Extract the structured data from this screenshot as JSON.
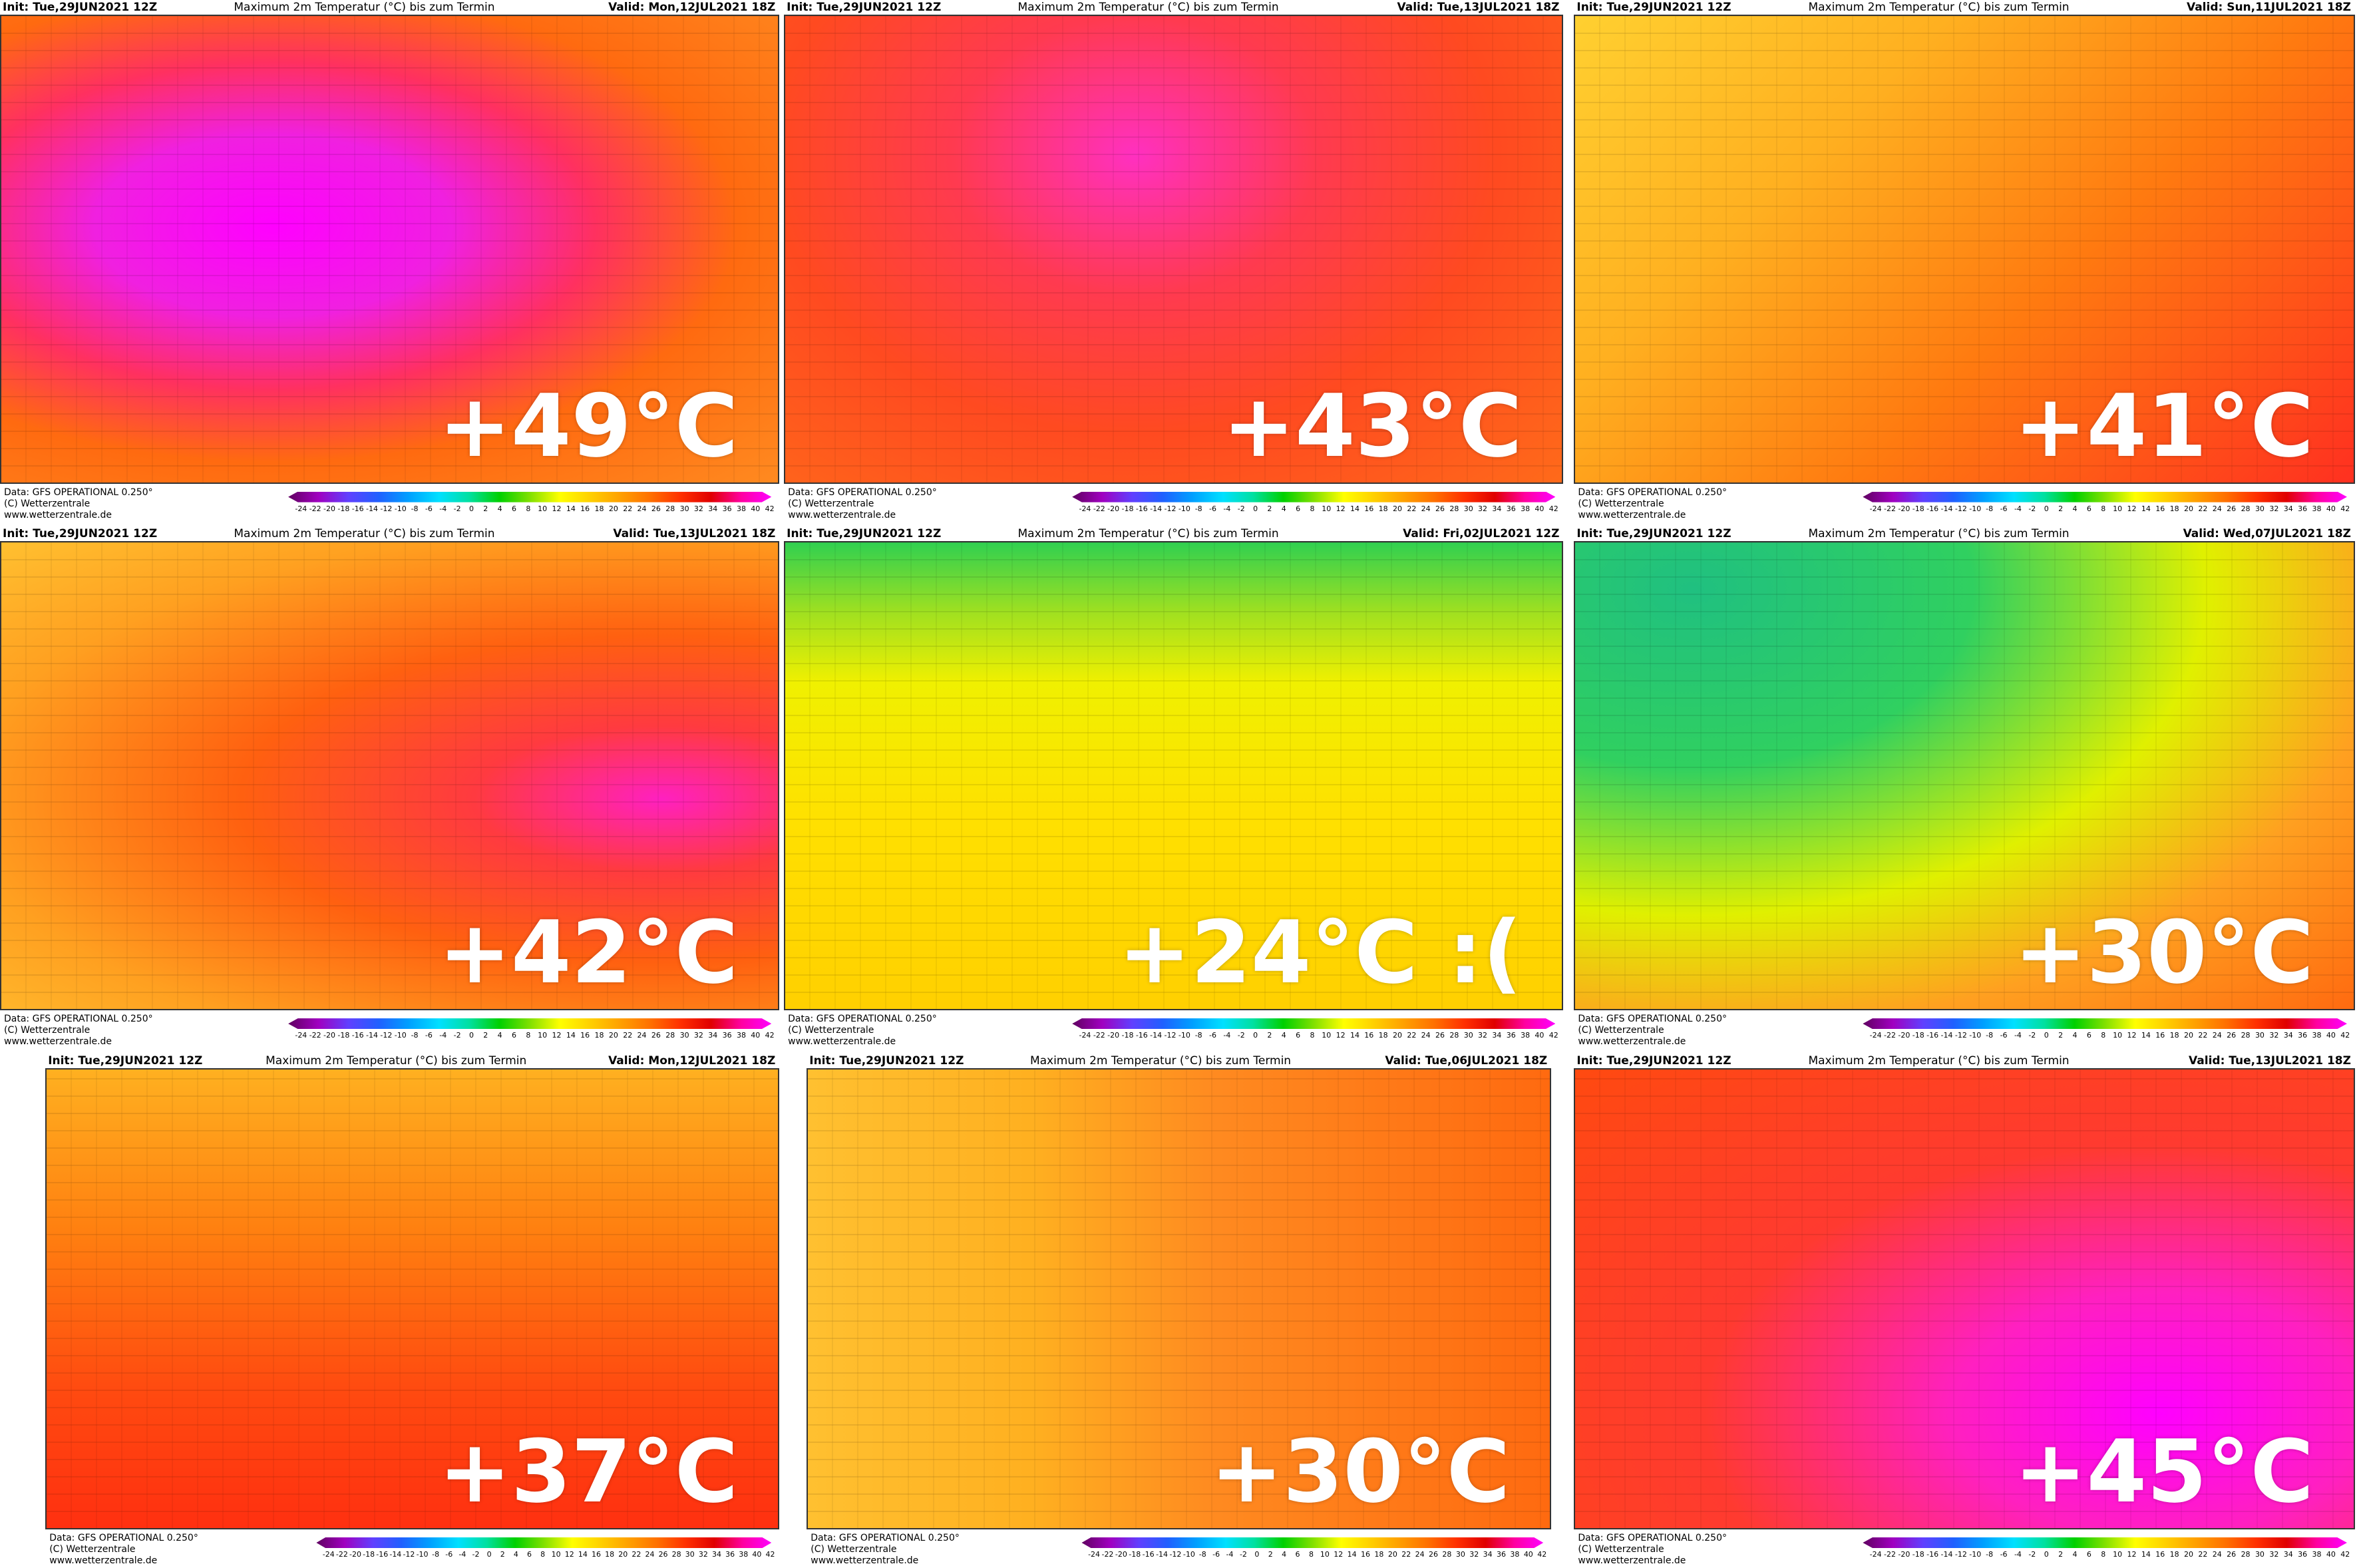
{
  "panels": [
    {
      "init": "Init: Tue,29JUN2021 12Z",
      "title": "Maximum 2m Temperatur (°C) bis zum Termin",
      "valid": "Valid: Mon,12JUL2021 18Z",
      "label": "+49°C"
    },
    {
      "init": "Init: Tue,29JUN2021 12Z",
      "title": "Maximum 2m Temperatur (°C) bis zum Termin",
      "valid": "Valid: Tue,13JUL2021 18Z",
      "label": "+43°C"
    },
    {
      "init": "Init: Tue,29JUN2021 12Z",
      "title": "Maximum 2m Temperatur (°C) bis zum Termin",
      "valid": "Valid: Sun,11JUL2021 18Z",
      "label": "+41°C"
    },
    {
      "init": "Init: Tue,29JUN2021 12Z",
      "title": "Maximum 2m Temperatur (°C) bis zum Termin",
      "valid": "Valid: Tue,13JUL2021 18Z",
      "label": "+42°C"
    },
    {
      "init": "Init: Tue,29JUN2021 12Z",
      "title": "Maximum 2m Temperatur (°C) bis zum Termin",
      "valid": "Valid: Fri,02JUL2021 12Z",
      "label": "+24°C :("
    },
    {
      "init": "Init: Tue,29JUN2021 12Z",
      "title": "Maximum 2m Temperatur (°C) bis zum Termin",
      "valid": "Valid: Wed,07JUL2021 18Z",
      "label": "+30°C"
    },
    {
      "init": "Init: Tue,29JUN2021 12Z",
      "title": "Maximum 2m Temperatur (°C) bis zum Termin",
      "valid": "Valid: Mon,12JUL2021 18Z",
      "label": "+37°C"
    },
    {
      "init": "Init: Tue,29JUN2021 12Z",
      "title": "Maximum 2m Temperatur (°C) bis zum Termin",
      "valid": "Valid: Tue,06JUL2021 18Z",
      "label": "+30°C"
    },
    {
      "init": "Init: Tue,29JUN2021 12Z",
      "title": "Maximum 2m Temperatur (°C) bis zum Termin",
      "valid": "Valid: Tue,13JUL2021 18Z",
      "label": "+45°C"
    }
  ],
  "footer": {
    "source": "Data: GFS OPERATIONAL 0.250°",
    "copyright": "(C) Wetterzentrale",
    "website": "www.wetterzentrale.de"
  },
  "colorbar": {
    "ticks": [
      -24,
      -22,
      -20,
      -18,
      -16,
      -14,
      -12,
      -10,
      -8,
      -6,
      -4,
      -2,
      0,
      2,
      4,
      6,
      8,
      10,
      12,
      14,
      16,
      18,
      20,
      22,
      24,
      26,
      28,
      30,
      32,
      34,
      36,
      38,
      40,
      42
    ]
  }
}
